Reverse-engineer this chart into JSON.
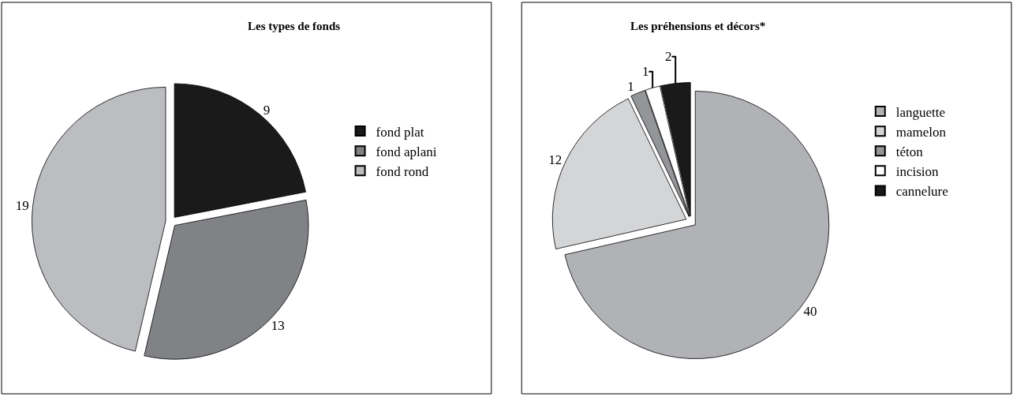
{
  "chart_data": [
    {
      "type": "pie",
      "title": "Les types de fonds",
      "categories": [
        "fond plat",
        "fond aplani",
        "fond rond"
      ],
      "values": [
        9,
        13,
        19
      ],
      "colors": [
        "#1a1a1a",
        "#808285",
        "#bcbdc0"
      ],
      "data_labels": true,
      "legend": "right"
    },
    {
      "type": "pie",
      "title": "Les préhensions et décors*",
      "categories": [
        "languette",
        "mamelon",
        "téton",
        "incision",
        "cannelure"
      ],
      "values": [
        40,
        12,
        1,
        1,
        2
      ],
      "colors": [
        "#b1b2b6",
        "#d4d5d7",
        "#939598",
        "#ffffff",
        "#1a1a1a"
      ],
      "data_labels": true,
      "legend": "right"
    }
  ]
}
